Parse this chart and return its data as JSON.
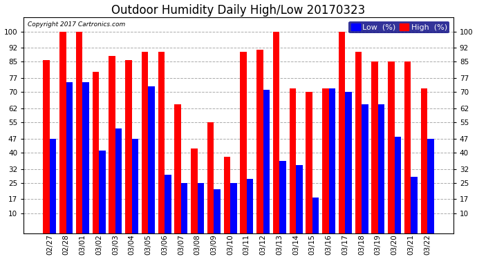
{
  "title": "Outdoor Humidity Daily High/Low 20170323",
  "copyright": "Copyright 2017 Cartronics.com",
  "dates": [
    "02/27",
    "02/28",
    "03/01",
    "03/02",
    "03/03",
    "03/04",
    "03/05",
    "03/06",
    "03/07",
    "03/08",
    "03/09",
    "03/10",
    "03/11",
    "03/12",
    "03/13",
    "03/14",
    "03/15",
    "03/16",
    "03/17",
    "03/18",
    "03/19",
    "03/20",
    "03/21",
    "03/22"
  ],
  "high": [
    86,
    100,
    100,
    80,
    88,
    86,
    90,
    90,
    64,
    42,
    55,
    38,
    90,
    91,
    100,
    72,
    70,
    72,
    100,
    90,
    85,
    85,
    85,
    72
  ],
  "low": [
    47,
    75,
    75,
    41,
    52,
    47,
    73,
    29,
    25,
    25,
    22,
    25,
    27,
    71,
    36,
    34,
    18,
    72,
    70,
    64,
    64,
    48,
    28,
    47
  ],
  "bar_color_high": "#FF0000",
  "bar_color_low": "#0000FF",
  "background_color": "#FFFFFF",
  "grid_color": "#AAAAAA",
  "ylim_min": 0,
  "ylim_max": 107,
  "yticks": [
    10,
    17,
    25,
    32,
    40,
    47,
    55,
    62,
    70,
    77,
    85,
    92,
    100
  ],
  "title_fontsize": 12,
  "tick_fontsize": 7.5,
  "legend_fontsize": 8
}
